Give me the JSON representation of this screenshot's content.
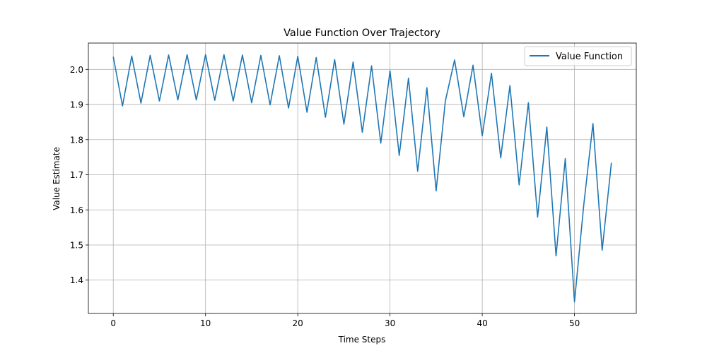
{
  "chart_data": {
    "type": "line",
    "title": "Value Function Over Trajectory",
    "xlabel": "Time Steps",
    "ylabel": "Value Estimate",
    "xlim": [
      -2.7,
      56.7
    ],
    "ylim": [
      1.305,
      2.075
    ],
    "xticks": [
      0,
      10,
      20,
      30,
      40,
      50
    ],
    "yticks": [
      1.4,
      1.5,
      1.6,
      1.7,
      1.8,
      1.9,
      2.0
    ],
    "xtick_labels": [
      "0",
      "10",
      "20",
      "30",
      "40",
      "50"
    ],
    "ytick_labels": [
      "1.4",
      "1.5",
      "1.6",
      "1.7",
      "1.8",
      "1.9",
      "2.0"
    ],
    "grid": true,
    "legend_position": "upper right",
    "series": [
      {
        "name": "Value Function",
        "color": "#1f77b4",
        "x": [
          0,
          1,
          2,
          3,
          4,
          5,
          6,
          7,
          8,
          9,
          10,
          11,
          12,
          13,
          14,
          15,
          16,
          17,
          18,
          19,
          20,
          21,
          22,
          23,
          24,
          25,
          26,
          27,
          28,
          29,
          30,
          31,
          32,
          33,
          34,
          35,
          36,
          37,
          38,
          39,
          40,
          41,
          42,
          43,
          44,
          45,
          46,
          47,
          48,
          49,
          50,
          51,
          52,
          53,
          54
        ],
        "y": [
          2.036,
          1.896,
          2.038,
          1.904,
          2.04,
          1.91,
          2.041,
          1.913,
          2.042,
          1.913,
          2.042,
          1.912,
          2.042,
          1.91,
          2.041,
          1.905,
          2.04,
          1.899,
          2.039,
          1.89,
          2.037,
          1.878,
          2.034,
          1.864,
          2.028,
          1.844,
          2.021,
          1.821,
          2.01,
          1.79,
          1.996,
          1.755,
          1.975,
          1.71,
          1.948,
          1.654,
          1.91,
          2.027,
          1.865,
          2.012,
          1.811,
          1.989,
          1.748,
          1.954,
          1.671,
          1.905,
          1.579,
          1.836,
          1.469,
          1.746,
          1.338,
          1.613,
          1.846,
          1.485,
          1.734
        ]
      }
    ]
  }
}
